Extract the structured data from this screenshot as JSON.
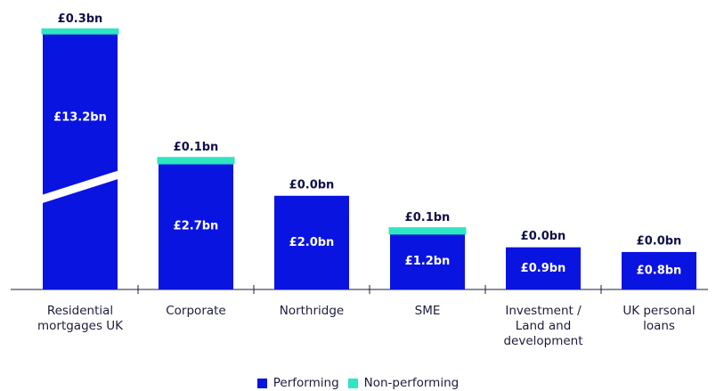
{
  "chart_data": {
    "type": "stacked_bar",
    "categories": [
      "Residential mortgages UK",
      "Corporate",
      "Northridge",
      "SME",
      "Investment / Land and development",
      "UK personal loans"
    ],
    "series": [
      {
        "name": "Performing",
        "color": "#0a14e0",
        "values": [
          13.2,
          2.7,
          2.0,
          1.2,
          0.9,
          0.8
        ],
        "value_labels": [
          "£13.2bn",
          "£2.7bn",
          "£2.0bn",
          "£1.2bn",
          "£0.9bn",
          "£0.8bn"
        ]
      },
      {
        "name": "Non-performing",
        "color": "#2ee6c2",
        "values": [
          0.3,
          0.1,
          0.0,
          0.1,
          0.0,
          0.0
        ],
        "value_labels": [
          "£0.3bn",
          "£0.1bn",
          "£0.0bn",
          "£0.1bn",
          "£0.0bn",
          "£0.0bn"
        ]
      }
    ],
    "axis_break": true
  }
}
